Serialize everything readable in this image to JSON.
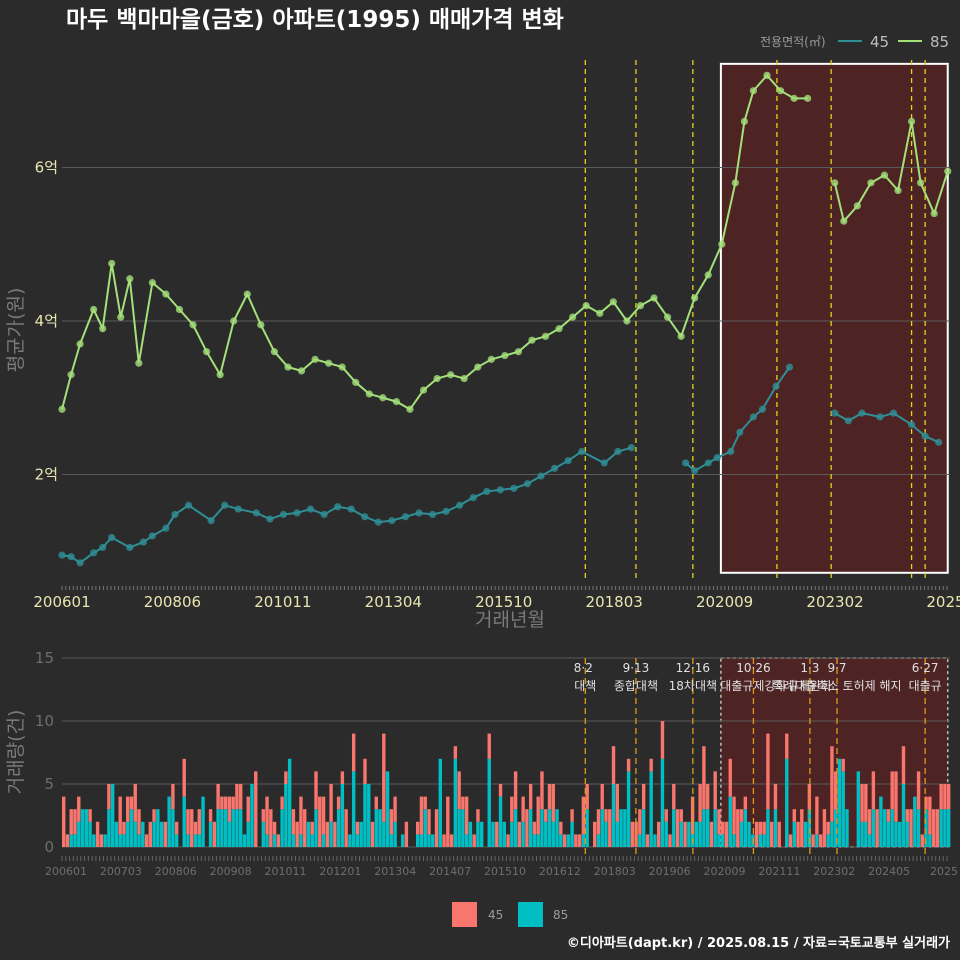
{
  "title": "마두 백마마을(금호) 아파트(1995) 매매가격 변화",
  "footer": "©디아파트(dapt.kr) / 2025.08.15 / 자료=국토교통부 실거래가",
  "colors": {
    "background": "#2b2b2b",
    "s45_line": "#2f8f96",
    "s85_line": "#a4e07a",
    "s45_bar": "#f8766d",
    "s85_bar": "#00bfc4",
    "highlight": "#5a2222",
    "policy_line": "#e6d21a",
    "policy_line_bottom": "#e09b1a"
  },
  "chart_data": [
    {
      "type": "line",
      "xlabel": "거래년월",
      "ylabel": "평균가(원)",
      "x_tick_labels": [
        "200601",
        "200806",
        "201011",
        "201304",
        "201510",
        "201803",
        "202009",
        "202302",
        "2025"
      ],
      "y_tick_labels": [
        "2억",
        "4억",
        "6억"
      ],
      "y_ticks": [
        2,
        4,
        6
      ],
      "ylim": [
        0.6,
        7.4
      ],
      "xlim": [
        2006.0,
        2025.65
      ],
      "legend_title": "전용면적(㎡)",
      "legend_placement": "top-right",
      "grid": true,
      "highlight_range": [
        2020.58,
        2025.6
      ],
      "policy_lines_x": [
        2017.58,
        2018.7,
        2019.96,
        2021.82,
        2023.02,
        2024.8,
        2025.1
      ],
      "series": [
        {
          "name": "45",
          "points": [
            [
              2006.0,
              0.95
            ],
            [
              2006.2,
              0.93
            ],
            [
              2006.4,
              0.85
            ],
            [
              2006.7,
              0.98
            ],
            [
              2006.9,
              1.05
            ],
            [
              2007.1,
              1.18
            ],
            [
              2007.5,
              1.05
            ],
            [
              2007.8,
              1.12
            ],
            [
              2008.0,
              1.2
            ],
            [
              2008.3,
              1.3
            ],
            [
              2008.5,
              1.48
            ],
            [
              2008.8,
              1.6
            ],
            [
              2009.3,
              1.4
            ],
            [
              2009.6,
              1.6
            ],
            [
              2009.9,
              1.55
            ],
            [
              2010.3,
              1.5
            ],
            [
              2010.6,
              1.42
            ],
            [
              2010.9,
              1.48
            ],
            [
              2011.2,
              1.5
            ],
            [
              2011.5,
              1.55
            ],
            [
              2011.8,
              1.48
            ],
            [
              2012.1,
              1.58
            ],
            [
              2012.4,
              1.55
            ],
            [
              2012.7,
              1.45
            ],
            [
              2013.0,
              1.38
            ],
            [
              2013.3,
              1.4
            ],
            [
              2013.6,
              1.45
            ],
            [
              2013.9,
              1.5
            ],
            [
              2014.2,
              1.48
            ],
            [
              2014.5,
              1.52
            ],
            [
              2014.8,
              1.6
            ],
            [
              2015.1,
              1.7
            ],
            [
              2015.4,
              1.78
            ],
            [
              2015.7,
              1.8
            ],
            [
              2016.0,
              1.82
            ],
            [
              2016.3,
              1.88
            ],
            [
              2016.6,
              1.98
            ],
            [
              2016.9,
              2.08
            ],
            [
              2017.2,
              2.18
            ],
            [
              2017.5,
              2.3
            ],
            [
              2018.0,
              2.15
            ],
            [
              2018.3,
              2.3
            ],
            [
              2018.6,
              2.35
            ],
            [
              2019.8,
              2.15
            ],
            [
              2020.0,
              2.05
            ],
            [
              2020.3,
              2.15
            ],
            [
              2020.5,
              2.22
            ],
            [
              2020.8,
              2.3
            ],
            [
              2021.0,
              2.55
            ],
            [
              2021.3,
              2.75
            ],
            [
              2021.5,
              2.85
            ],
            [
              2021.8,
              3.15
            ],
            [
              2022.1,
              3.4
            ],
            [
              2023.1,
              2.8
            ],
            [
              2023.4,
              2.7
            ],
            [
              2023.7,
              2.8
            ],
            [
              2024.1,
              2.75
            ],
            [
              2024.4,
              2.8
            ],
            [
              2024.8,
              2.65
            ],
            [
              2025.1,
              2.5
            ],
            [
              2025.4,
              2.42
            ]
          ]
        },
        {
          "name": "85",
          "points": [
            [
              2006.0,
              2.85
            ],
            [
              2006.2,
              3.3
            ],
            [
              2006.4,
              3.7
            ],
            [
              2006.7,
              4.15
            ],
            [
              2006.9,
              3.9
            ],
            [
              2007.1,
              4.75
            ],
            [
              2007.3,
              4.05
            ],
            [
              2007.5,
              4.55
            ],
            [
              2007.7,
              3.45
            ],
            [
              2008.0,
              4.5
            ],
            [
              2008.3,
              4.35
            ],
            [
              2008.6,
              4.15
            ],
            [
              2008.9,
              3.95
            ],
            [
              2009.2,
              3.6
            ],
            [
              2009.5,
              3.3
            ],
            [
              2009.8,
              4.0
            ],
            [
              2010.1,
              4.35
            ],
            [
              2010.4,
              3.95
            ],
            [
              2010.7,
              3.6
            ],
            [
              2011.0,
              3.4
            ],
            [
              2011.3,
              3.35
            ],
            [
              2011.6,
              3.5
            ],
            [
              2011.9,
              3.45
            ],
            [
              2012.2,
              3.4
            ],
            [
              2012.5,
              3.2
            ],
            [
              2012.8,
              3.05
            ],
            [
              2013.1,
              3.0
            ],
            [
              2013.4,
              2.95
            ],
            [
              2013.7,
              2.85
            ],
            [
              2014.0,
              3.1
            ],
            [
              2014.3,
              3.25
            ],
            [
              2014.6,
              3.3
            ],
            [
              2014.9,
              3.25
            ],
            [
              2015.2,
              3.4
            ],
            [
              2015.5,
              3.5
            ],
            [
              2015.8,
              3.55
            ],
            [
              2016.1,
              3.6
            ],
            [
              2016.4,
              3.75
            ],
            [
              2016.7,
              3.8
            ],
            [
              2017.0,
              3.9
            ],
            [
              2017.3,
              4.05
            ],
            [
              2017.6,
              4.2
            ],
            [
              2017.9,
              4.1
            ],
            [
              2018.2,
              4.25
            ],
            [
              2018.5,
              4.0
            ],
            [
              2018.8,
              4.2
            ],
            [
              2019.1,
              4.3
            ],
            [
              2019.4,
              4.05
            ],
            [
              2019.7,
              3.8
            ],
            [
              2020.0,
              4.3
            ],
            [
              2020.3,
              4.6
            ],
            [
              2020.6,
              5.0
            ],
            [
              2020.9,
              5.8
            ],
            [
              2021.1,
              6.6
            ],
            [
              2021.3,
              7.0
            ],
            [
              2021.6,
              7.2
            ],
            [
              2021.9,
              7.0
            ],
            [
              2022.2,
              6.9
            ],
            [
              2022.5,
              6.9
            ],
            [
              2023.1,
              5.8
            ],
            [
              2023.3,
              5.3
            ],
            [
              2023.6,
              5.5
            ],
            [
              2023.9,
              5.8
            ],
            [
              2024.2,
              5.9
            ],
            [
              2024.5,
              5.7
            ],
            [
              2024.8,
              6.6
            ],
            [
              2025.0,
              5.8
            ],
            [
              2025.3,
              5.4
            ],
            [
              2025.6,
              5.95
            ]
          ]
        }
      ]
    },
    {
      "type": "bar",
      "ylabel": "거래량(건)",
      "y_tick_labels": [
        "0",
        "5",
        "10",
        "15"
      ],
      "y_ticks": [
        0,
        5,
        10,
        15
      ],
      "ylim": [
        0,
        15
      ],
      "x_tick_labels": [
        "200601",
        "200703",
        "200806",
        "200908",
        "201011",
        "201201",
        "201304",
        "201407",
        "201510",
        "201612",
        "201803",
        "201906",
        "202009",
        "202111",
        "202302",
        "202405",
        "2025"
      ],
      "policies": [
        {
          "date": "8·2",
          "text": "대책"
        },
        {
          "date": "9·13",
          "text": "종합대책"
        },
        {
          "date": "12·16",
          "text": "18차대책"
        },
        {
          "date": "10·26",
          "text": "대출규제강화"
        },
        {
          "date": "1·3",
          "text": "규제완화"
        },
        {
          "date": "9·7",
          "text": "특례대출축소 토허제 해지"
        },
        {
          "date": "6·27",
          "text": "대출규"
        }
      ],
      "series_names": [
        "45",
        "85"
      ],
      "highlight_range": [
        2020.58,
        2025.6
      ]
    }
  ]
}
